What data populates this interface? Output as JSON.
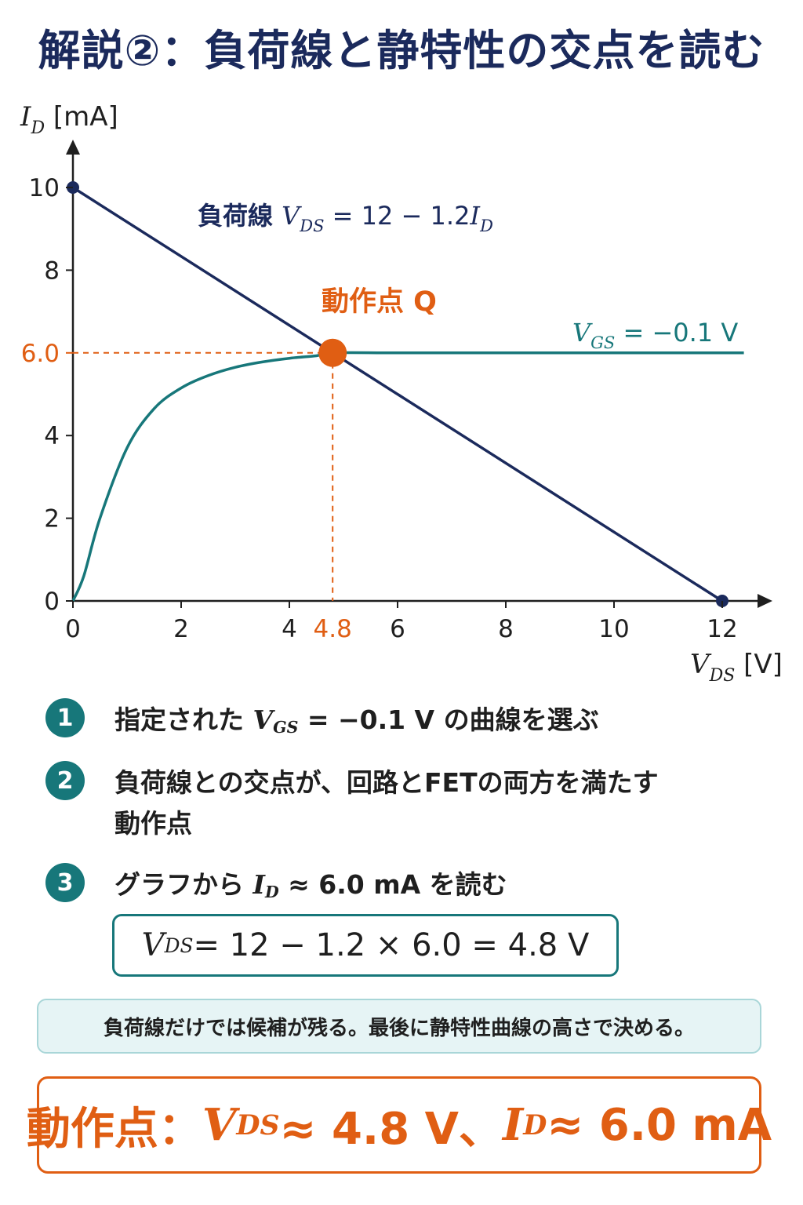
{
  "title": "解説②：負荷線と静特性の交点を読む",
  "chart_data": {
    "type": "line",
    "y_axis_label": {
      "main": "I",
      "sub": "D",
      "unit": "[mA]"
    },
    "x_axis_label": {
      "main": "V",
      "sub": "DS",
      "unit": "[V]"
    },
    "xlim": [
      0,
      12
    ],
    "ylim": [
      0,
      10
    ],
    "x_ticks": [
      "0",
      "2",
      "4",
      "6",
      "8",
      "10",
      "12"
    ],
    "y_ticks": [
      "0",
      "2",
      "4",
      "8",
      "10"
    ],
    "highlight_x_tick": "4.8",
    "highlight_y_tick": "6.0",
    "series": [
      {
        "name": "負荷線",
        "label_equation": "V_DS = 12 − 1.2 I_D",
        "x": [
          0,
          12
        ],
        "y": [
          10,
          0
        ],
        "color": "#1b2a5c"
      },
      {
        "name": "V_GS = −0.1 V",
        "label_parts": {
          "v": "V",
          "sub": "GS",
          "rest": " = −0.1 V"
        },
        "x": [
          0,
          0.2,
          0.5,
          1.0,
          1.5,
          2.0,
          2.5,
          3.0,
          3.5,
          4.0,
          4.5,
          4.8,
          6,
          8,
          10,
          12.4
        ],
        "y": [
          0,
          0.6,
          2.0,
          3.7,
          4.65,
          5.15,
          5.45,
          5.65,
          5.78,
          5.87,
          5.93,
          6.0,
          6.0,
          6.0,
          6.0,
          6.0
        ],
        "color": "#17777a"
      }
    ],
    "operating_point": {
      "label": "動作点 Q",
      "x": 4.8,
      "y": 6.0,
      "color": "#e05e13"
    },
    "load_line_label": {
      "text": "負荷線",
      "v": "V",
      "sub": "DS",
      "eq": " = 12 − 1.2",
      "i": "I",
      "isub": "D"
    },
    "endpoints": [
      {
        "x": 0,
        "y": 10
      },
      {
        "x": 12,
        "y": 0
      }
    ],
    "grid": false
  },
  "steps": [
    {
      "number": "1",
      "text_before": "指定された ",
      "v": "V",
      "sub": "GS",
      "text_after": " = −0.1 V の曲線を選ぶ"
    },
    {
      "number": "2",
      "text": "負荷線との交点が、回路とFETの両方を満たす動作点"
    },
    {
      "number": "3",
      "text_before": "グラフから ",
      "v": "I",
      "sub": "D",
      "text_after": " ≈ 6.0 mA を読む"
    }
  ],
  "equation_box": {
    "v": "V",
    "sub": "DS",
    "text": " = 12 − 1.2 × 6.0 = 4.8 V"
  },
  "note": "負荷線だけでは候補が残る。最後に静特性曲線の高さで決める。",
  "final": {
    "prefix": "動作点：",
    "v": "V",
    "vsub": "DS",
    "vtext": " ≈ 4.8 V、",
    "i": "I",
    "isub": "D",
    "itext": " ≈ 6.0 mA"
  }
}
